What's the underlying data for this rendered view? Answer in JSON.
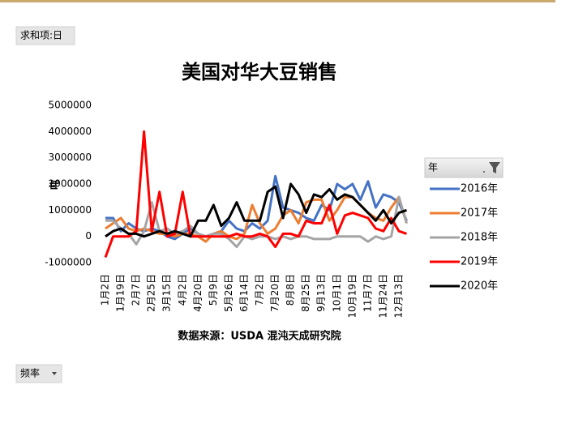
{
  "chart_data": {
    "type": "line",
    "title": "美国对华大豆销售",
    "y_axis_label": "吨",
    "x_axis_label": "数据来源：USDA 混沌天成研究院",
    "filter_button": "求和项:日",
    "axis_field_button": "频率",
    "legend_title": "年",
    "categories": [
      "1月2日",
      null,
      "1月19日",
      null,
      "2月7日",
      null,
      "2月25日",
      null,
      "3月15日",
      null,
      "4月2日",
      null,
      "4月20日",
      null,
      "5月9日",
      null,
      "5月26日",
      null,
      "6月14日",
      null,
      "7月2日",
      null,
      "7月20日",
      null,
      "8月8日",
      null,
      "8月25日",
      null,
      "9月13日",
      null,
      "10月1日",
      null,
      "10月19日",
      null,
      "11月7日",
      null,
      "11月24日",
      null,
      "12月13日",
      null
    ],
    "ylim": [
      -1000000,
      5000000
    ],
    "yticks": [
      -1000000,
      0,
      1000000,
      2000000,
      3000000,
      4000000,
      5000000
    ],
    "grid": false,
    "legend": "right",
    "series": [
      {
        "name": "2016年",
        "color": "#4472c4",
        "values": [
          700000,
          700000,
          200000,
          500000,
          300000,
          200000,
          300000,
          200000,
          0,
          -100000,
          100000,
          300000,
          100000,
          0,
          100000,
          200000,
          600000,
          300000,
          200000,
          500000,
          300000,
          600000,
          2300000,
          1100000,
          1000000,
          900000,
          700000,
          600000,
          1200000,
          1000000,
          2000000,
          1800000,
          2000000,
          1400000,
          2100000,
          1100000,
          1600000,
          1500000,
          1300000,
          600000
        ]
      },
      {
        "name": "2017年",
        "color": "#ed7d31",
        "values": [
          300000,
          500000,
          700000,
          300000,
          200000,
          300000,
          200000,
          100000,
          100000,
          0,
          100000,
          100000,
          0,
          -200000,
          100000,
          200000,
          0,
          -100000,
          100000,
          1200000,
          500000,
          100000,
          300000,
          800000,
          1000000,
          500000,
          1300000,
          1400000,
          1400000,
          600000,
          1000000,
          1500000,
          1500000,
          1200000,
          900000,
          700000,
          600000,
          1100000,
          1500000,
          500000
        ]
      },
      {
        "name": "2018年",
        "color": "#a5a5a5",
        "values": [
          600000,
          600000,
          300000,
          100000,
          -300000,
          200000,
          1300000,
          200000,
          300000,
          100000,
          200000,
          400000,
          100000,
          0,
          100000,
          100000,
          -100000,
          -400000,
          0,
          -100000,
          0,
          0,
          -100000,
          0,
          -100000,
          0,
          0,
          -100000,
          -100000,
          -100000,
          0,
          0,
          0,
          0,
          -200000,
          0,
          -100000,
          0,
          1500000,
          500000
        ]
      },
      {
        "name": "2019年",
        "color": "#ff0000",
        "values": [
          -800000,
          0,
          0,
          0,
          200000,
          4000000,
          200000,
          1700000,
          0,
          100000,
          1700000,
          0,
          0,
          0,
          0,
          0,
          0,
          100000,
          0,
          0,
          100000,
          0,
          -400000,
          100000,
          100000,
          0,
          600000,
          500000,
          500000,
          1200000,
          100000,
          800000,
          900000,
          800000,
          700000,
          300000,
          200000,
          700000,
          200000,
          100000
        ]
      },
      {
        "name": "2020年",
        "color": "#000000",
        "values": [
          0,
          200000,
          300000,
          100000,
          100000,
          0,
          100000,
          200000,
          100000,
          200000,
          100000,
          0,
          600000,
          600000,
          1200000,
          400000,
          700000,
          1300000,
          600000,
          600000,
          600000,
          1700000,
          1900000,
          700000,
          2000000,
          1600000,
          900000,
          1600000,
          1500000,
          1800000,
          1400000,
          1600000,
          1500000,
          1200000,
          900000,
          600000,
          1000000,
          500000,
          900000,
          1000000
        ]
      }
    ]
  }
}
